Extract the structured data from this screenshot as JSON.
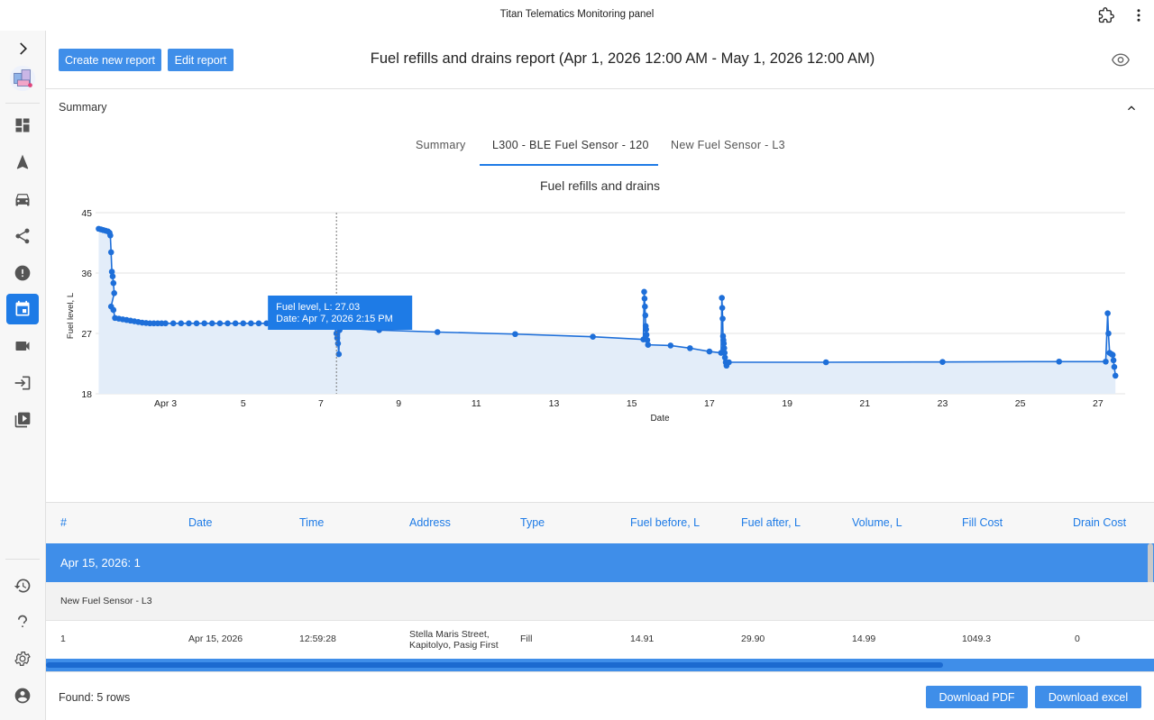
{
  "window": {
    "title": "Titan Telematics Monitoring panel"
  },
  "header": {
    "create_label": "Create new report",
    "edit_label": "Edit report",
    "report_title": "Fuel refills and drains report (Apr 1, 2026 12:00 AM - May 1, 2026 12:00 AM)"
  },
  "summary": {
    "heading": "Summary",
    "tabs": [
      {
        "label": "Summary"
      },
      {
        "label": "L300 - BLE Fuel Sensor - 120"
      },
      {
        "label": "New Fuel Sensor - L3"
      }
    ],
    "active_tab": 1
  },
  "chart_data": {
    "type": "line",
    "title": "Fuel refills and drains",
    "xlabel": "Date",
    "ylabel": "Fuel level, L",
    "ylim": [
      18,
      45
    ],
    "xlim_days": [
      1.2,
      27.7
    ],
    "yticks": [
      "45",
      "36",
      "27",
      "18"
    ],
    "xticks": [
      {
        "label": "Apr 3",
        "day": 3
      },
      {
        "label": "5",
        "day": 5
      },
      {
        "label": "7",
        "day": 7
      },
      {
        "label": "9",
        "day": 9
      },
      {
        "label": "11",
        "day": 11
      },
      {
        "label": "13",
        "day": 13
      },
      {
        "label": "15",
        "day": 15
      },
      {
        "label": "17",
        "day": 17
      },
      {
        "label": "19",
        "day": 19
      },
      {
        "label": "21",
        "day": 21
      },
      {
        "label": "23",
        "day": 23
      },
      {
        "label": "25",
        "day": 25
      },
      {
        "label": "27",
        "day": 27
      }
    ],
    "series": [
      {
        "color": "#1e6fd9",
        "fill": "#e3edf9",
        "points": [
          [
            1.28,
            42.6
          ],
          [
            1.34,
            42.5
          ],
          [
            1.4,
            42.4
          ],
          [
            1.46,
            42.3
          ],
          [
            1.52,
            42.2
          ],
          [
            1.56,
            42.0
          ],
          [
            1.58,
            41.6
          ],
          [
            1.6,
            39.1
          ],
          [
            1.62,
            36.2
          ],
          [
            1.64,
            35.5
          ],
          [
            1.66,
            34.5
          ],
          [
            1.68,
            33.0
          ],
          [
            1.6,
            31.0
          ],
          [
            1.66,
            30.5
          ],
          [
            1.7,
            29.3
          ],
          [
            1.8,
            29.2
          ],
          [
            1.9,
            29.1
          ],
          [
            2.0,
            29.0
          ],
          [
            2.1,
            28.9
          ],
          [
            2.2,
            28.8
          ],
          [
            2.3,
            28.7
          ],
          [
            2.4,
            28.6
          ],
          [
            2.5,
            28.55
          ],
          [
            2.6,
            28.5
          ],
          [
            2.7,
            28.5
          ],
          [
            2.8,
            28.5
          ],
          [
            2.9,
            28.5
          ],
          [
            3.0,
            28.5
          ],
          [
            3.2,
            28.5
          ],
          [
            3.4,
            28.5
          ],
          [
            3.6,
            28.5
          ],
          [
            3.8,
            28.5
          ],
          [
            4.0,
            28.5
          ],
          [
            4.2,
            28.5
          ],
          [
            4.4,
            28.5
          ],
          [
            4.6,
            28.5
          ],
          [
            4.8,
            28.5
          ],
          [
            5.0,
            28.5
          ],
          [
            5.2,
            28.5
          ],
          [
            5.4,
            28.5
          ],
          [
            5.6,
            28.5
          ],
          [
            5.8,
            28.5
          ],
          [
            6.0,
            28.5
          ],
          [
            6.2,
            28.5
          ],
          [
            6.4,
            28.5
          ],
          [
            6.6,
            28.5
          ],
          [
            6.8,
            28.5
          ],
          [
            7.0,
            28.5
          ],
          [
            7.2,
            28.4
          ],
          [
            7.35,
            28.0
          ],
          [
            7.4,
            27.0
          ],
          [
            7.42,
            26.3
          ],
          [
            7.44,
            25.5
          ],
          [
            7.46,
            23.9
          ],
          [
            7.48,
            27.5
          ],
          [
            7.5,
            27.8
          ],
          [
            8.5,
            27.5
          ],
          [
            10.0,
            27.2
          ],
          [
            12.0,
            26.9
          ],
          [
            14.0,
            26.5
          ],
          [
            15.3,
            26.1
          ],
          [
            15.32,
            33.2
          ],
          [
            15.33,
            32.2
          ],
          [
            15.34,
            31.0
          ],
          [
            15.35,
            29.7
          ],
          [
            15.36,
            28.1
          ],
          [
            15.37,
            27.6
          ],
          [
            15.38,
            26.8
          ],
          [
            15.4,
            26.0
          ],
          [
            15.42,
            25.3
          ],
          [
            16.0,
            25.2
          ],
          [
            16.5,
            24.8
          ],
          [
            17.0,
            24.3
          ],
          [
            17.3,
            24.1
          ],
          [
            17.32,
            32.3
          ],
          [
            17.33,
            30.8
          ],
          [
            17.34,
            29.2
          ],
          [
            17.35,
            26.6
          ],
          [
            17.36,
            26.0
          ],
          [
            17.37,
            25.5
          ],
          [
            17.38,
            24.8
          ],
          [
            17.39,
            24.1
          ],
          [
            17.4,
            23.4
          ],
          [
            17.42,
            22.7
          ],
          [
            17.44,
            22.2
          ],
          [
            17.5,
            22.7
          ],
          [
            20.0,
            22.7
          ],
          [
            23.0,
            22.75
          ],
          [
            26.0,
            22.8
          ],
          [
            27.2,
            22.8
          ],
          [
            27.25,
            30.0
          ],
          [
            27.27,
            27.0
          ],
          [
            27.3,
            24.1
          ],
          [
            27.35,
            23.9
          ],
          [
            27.38,
            23.8
          ],
          [
            27.4,
            23.0
          ],
          [
            27.42,
            22.0
          ],
          [
            27.45,
            20.7
          ]
        ]
      }
    ],
    "crosshair_day": 7.4,
    "tooltip": {
      "line1": "Fuel level, L: 27.03",
      "line2": "Date: Apr 7, 2026 2:15 PM"
    }
  },
  "table": {
    "columns": [
      "#",
      "Date",
      "Time",
      "Address",
      "Type",
      "Fuel before, L",
      "Fuel after, L",
      "Volume, L",
      "Fill Cost",
      "Drain Cost"
    ],
    "group": "Apr 15, 2026: 1",
    "subgroup": "New Fuel Sensor - L3",
    "rows": [
      [
        "1",
        "Apr 15, 2026",
        "12:59:28",
        "Stella Maris Street, Kapitolyo, Pasig First",
        "Fill",
        "14.91",
        "29.90",
        "14.99",
        "1049.3",
        "0"
      ]
    ]
  },
  "footer": {
    "found": "Found: 5 rows",
    "download_pdf": "Download PDF",
    "download_excel": "Download excel"
  },
  "colors": {
    "accent": "#1e7be6",
    "button": "#3f8ee9"
  }
}
